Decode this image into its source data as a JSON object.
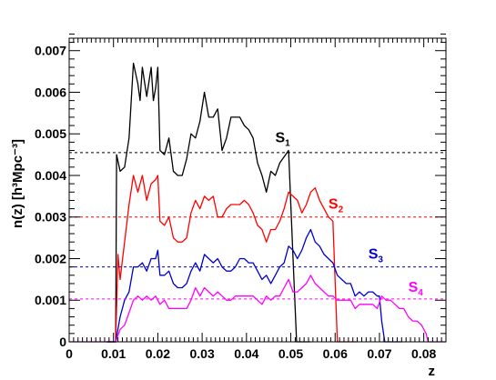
{
  "chart_data": {
    "type": "line",
    "xlabel": "z",
    "ylabel": "n(z) [h³Mpc⁻³]",
    "xlim": [
      0,
      0.085
    ],
    "ylim": [
      0,
      0.0073
    ],
    "grid": false,
    "x_ticks": [
      "0",
      "0.01",
      "0.02",
      "0.03",
      "0.04",
      "0.05",
      "0.06",
      "0.07",
      "0.08"
    ],
    "y_ticks": [
      "0",
      "0.001",
      "0.002",
      "0.003",
      "0.004",
      "0.005",
      "0.006",
      "0.007"
    ],
    "series": [
      {
        "name": "S1",
        "label_main": "S",
        "label_sub": "1",
        "label_pos": [
          0.0465,
          0.0048
        ],
        "color": "#000000",
        "mean": 0.00455,
        "points": [
          [
            0.0085,
            0
          ],
          [
            0.0095,
            0
          ],
          [
            0.0105,
            0
          ],
          [
            0.0107,
            0.0045
          ],
          [
            0.0115,
            0.0041
          ],
          [
            0.0125,
            0.0042
          ],
          [
            0.0135,
            0.0049
          ],
          [
            0.0145,
            0.0067
          ],
          [
            0.0155,
            0.0062
          ],
          [
            0.016,
            0.0058
          ],
          [
            0.0165,
            0.0066
          ],
          [
            0.0175,
            0.0059
          ],
          [
            0.0185,
            0.0066
          ],
          [
            0.019,
            0.0058
          ],
          [
            0.0195,
            0.0061
          ],
          [
            0.02,
            0.0066
          ],
          [
            0.0205,
            0.0046
          ],
          [
            0.0215,
            0.0045
          ],
          [
            0.0225,
            0.0049
          ],
          [
            0.0235,
            0.0041
          ],
          [
            0.0245,
            0.004
          ],
          [
            0.0255,
            0.004
          ],
          [
            0.0265,
            0.0044
          ],
          [
            0.0275,
            0.005
          ],
          [
            0.0285,
            0.0049
          ],
          [
            0.0295,
            0.0053
          ],
          [
            0.0305,
            0.006
          ],
          [
            0.0315,
            0.0054
          ],
          [
            0.0325,
            0.0054
          ],
          [
            0.0335,
            0.0056
          ],
          [
            0.0345,
            0.0046
          ],
          [
            0.0355,
            0.0049
          ],
          [
            0.0365,
            0.0054
          ],
          [
            0.0375,
            0.0054
          ],
          [
            0.0385,
            0.0054
          ],
          [
            0.0395,
            0.0052
          ],
          [
            0.0405,
            0.0051
          ],
          [
            0.0415,
            0.0049
          ],
          [
            0.0425,
            0.0043
          ],
          [
            0.0435,
            0.004
          ],
          [
            0.0445,
            0.0036
          ],
          [
            0.0455,
            0.0041
          ],
          [
            0.0465,
            0.004
          ],
          [
            0.0475,
            0.0043
          ],
          [
            0.0495,
            0.0046
          ],
          [
            0.0505,
            0.002
          ],
          [
            0.0513,
            0
          ],
          [
            0.0545,
            0
          ]
        ]
      },
      {
        "name": "S2",
        "label_main": "S",
        "label_sub": "2",
        "label_pos": [
          0.0585,
          0.0032
        ],
        "color": "#ff0000",
        "mean": 0.003,
        "points": [
          [
            0.0085,
            0
          ],
          [
            0.0105,
            0
          ],
          [
            0.011,
            0.0021
          ],
          [
            0.0115,
            0.0015
          ],
          [
            0.0125,
            0.0024
          ],
          [
            0.0135,
            0.0033
          ],
          [
            0.0145,
            0.004
          ],
          [
            0.0155,
            0.0036
          ],
          [
            0.0165,
            0.004
          ],
          [
            0.0175,
            0.0034
          ],
          [
            0.0185,
            0.0038
          ],
          [
            0.0195,
            0.0039
          ],
          [
            0.02,
            0.004
          ],
          [
            0.0205,
            0.0029
          ],
          [
            0.0215,
            0.0028
          ],
          [
            0.0225,
            0.003
          ],
          [
            0.0235,
            0.0025
          ],
          [
            0.0245,
            0.0024
          ],
          [
            0.0255,
            0.0024
          ],
          [
            0.0265,
            0.0025
          ],
          [
            0.0275,
            0.0031
          ],
          [
            0.0285,
            0.0034
          ],
          [
            0.0295,
            0.0032
          ],
          [
            0.0305,
            0.0035
          ],
          [
            0.0315,
            0.0034
          ],
          [
            0.0325,
            0.0035
          ],
          [
            0.0335,
            0.003
          ],
          [
            0.0345,
            0.003
          ],
          [
            0.0355,
            0.0032
          ],
          [
            0.0365,
            0.0033
          ],
          [
            0.0375,
            0.0033
          ],
          [
            0.0385,
            0.0033
          ],
          [
            0.0395,
            0.0034
          ],
          [
            0.0405,
            0.0033
          ],
          [
            0.0415,
            0.0031
          ],
          [
            0.0425,
            0.0028
          ],
          [
            0.0435,
            0.0027
          ],
          [
            0.0445,
            0.0024
          ],
          [
            0.0455,
            0.0027
          ],
          [
            0.0465,
            0.0027
          ],
          [
            0.0475,
            0.0029
          ],
          [
            0.0485,
            0.0032
          ],
          [
            0.0495,
            0.0036
          ],
          [
            0.0505,
            0.0035
          ],
          [
            0.0515,
            0.0034
          ],
          [
            0.0525,
            0.0031
          ],
          [
            0.0535,
            0.0033
          ],
          [
            0.0545,
            0.0036
          ],
          [
            0.0555,
            0.0037
          ],
          [
            0.0565,
            0.0034
          ],
          [
            0.0575,
            0.0032
          ],
          [
            0.0585,
            0.003
          ],
          [
            0.0595,
            0.0029
          ],
          [
            0.0605,
            0
          ],
          [
            0.065,
            0
          ]
        ]
      },
      {
        "name": "S3",
        "label_main": "S",
        "label_sub": "3",
        "label_pos": [
          0.0675,
          0.002
        ],
        "color": "#0000cc",
        "mean": 0.0018,
        "points": [
          [
            0.0085,
            0
          ],
          [
            0.0105,
            0
          ],
          [
            0.0115,
            0.0006
          ],
          [
            0.0125,
            0.001
          ],
          [
            0.0135,
            0.0012
          ],
          [
            0.0145,
            0.0018
          ],
          [
            0.0155,
            0.0018
          ],
          [
            0.0165,
            0.0019
          ],
          [
            0.0175,
            0.0017
          ],
          [
            0.0185,
            0.002
          ],
          [
            0.0195,
            0.002
          ],
          [
            0.02,
            0.0022
          ],
          [
            0.0205,
            0.0016
          ],
          [
            0.0215,
            0.0016
          ],
          [
            0.0225,
            0.0017
          ],
          [
            0.0235,
            0.0014
          ],
          [
            0.0245,
            0.0013
          ],
          [
            0.0255,
            0.0013
          ],
          [
            0.0265,
            0.0014
          ],
          [
            0.0275,
            0.0017
          ],
          [
            0.0285,
            0.0019
          ],
          [
            0.0295,
            0.0017
          ],
          [
            0.0305,
            0.0021
          ],
          [
            0.0315,
            0.002
          ],
          [
            0.0325,
            0.0019
          ],
          [
            0.0335,
            0.002
          ],
          [
            0.0345,
            0.0018
          ],
          [
            0.0355,
            0.0017
          ],
          [
            0.0365,
            0.0017
          ],
          [
            0.0375,
            0.0018
          ],
          [
            0.0385,
            0.002
          ],
          [
            0.0395,
            0.002
          ],
          [
            0.0405,
            0.0019
          ],
          [
            0.0415,
            0.0019
          ],
          [
            0.0425,
            0.0017
          ],
          [
            0.0435,
            0.0015
          ],
          [
            0.0445,
            0.0016
          ],
          [
            0.0455,
            0.0014
          ],
          [
            0.0465,
            0.0016
          ],
          [
            0.0475,
            0.0018
          ],
          [
            0.0485,
            0.0019
          ],
          [
            0.0495,
            0.0023
          ],
          [
            0.0505,
            0.0022
          ],
          [
            0.0515,
            0.002
          ],
          [
            0.0525,
            0.0022
          ],
          [
            0.0535,
            0.0025
          ],
          [
            0.0545,
            0.0027
          ],
          [
            0.0555,
            0.0024
          ],
          [
            0.0565,
            0.0023
          ],
          [
            0.0575,
            0.0021
          ],
          [
            0.0585,
            0.002
          ],
          [
            0.0595,
            0.0019
          ],
          [
            0.0605,
            0.0016
          ],
          [
            0.0615,
            0.0015
          ],
          [
            0.0625,
            0.0014
          ],
          [
            0.0635,
            0.0014
          ],
          [
            0.0645,
            0.0011
          ],
          [
            0.0655,
            0.0012
          ],
          [
            0.0665,
            0.0011
          ],
          [
            0.0675,
            0.0012
          ],
          [
            0.0685,
            0.0012
          ],
          [
            0.0695,
            0.0011
          ],
          [
            0.07,
            0.0011
          ],
          [
            0.0705,
            0.0005
          ],
          [
            0.0712,
            0
          ],
          [
            0.075,
            0
          ]
        ]
      },
      {
        "name": "S4",
        "label_main": "S",
        "label_sub": "4",
        "label_pos": [
          0.0765,
          0.0012
        ],
        "color": "#ff00ff",
        "mean": 0.00103,
        "points": [
          [
            0,
            0
          ],
          [
            0.0095,
            0
          ],
          [
            0.0105,
            0
          ],
          [
            0.0115,
            0.0003
          ],
          [
            0.0125,
            0.0004
          ],
          [
            0.0135,
            0.0007
          ],
          [
            0.0145,
            0.001
          ],
          [
            0.0155,
            0.0011
          ],
          [
            0.0165,
            0.001
          ],
          [
            0.0175,
            0.0011
          ],
          [
            0.0185,
            0.001
          ],
          [
            0.0195,
            0.0011
          ],
          [
            0.0205,
            0.0009
          ],
          [
            0.0215,
            0.001
          ],
          [
            0.0225,
            0.0008
          ],
          [
            0.0235,
            0.0008
          ],
          [
            0.0245,
            0.0008
          ],
          [
            0.0255,
            0.0008
          ],
          [
            0.0265,
            0.0008
          ],
          [
            0.0275,
            0.001
          ],
          [
            0.0285,
            0.0013
          ],
          [
            0.0295,
            0.0011
          ],
          [
            0.0305,
            0.0013
          ],
          [
            0.0315,
            0.0012
          ],
          [
            0.0325,
            0.0011
          ],
          [
            0.0335,
            0.0012
          ],
          [
            0.0345,
            0.0011
          ],
          [
            0.0355,
            0.001
          ],
          [
            0.0365,
            0.001
          ],
          [
            0.0375,
            0.0011
          ],
          [
            0.0385,
            0.0011
          ],
          [
            0.0395,
            0.0011
          ],
          [
            0.0405,
            0.0011
          ],
          [
            0.0415,
            0.0011
          ],
          [
            0.0425,
            0.001
          ],
          [
            0.0435,
            0.0009
          ],
          [
            0.0445,
            0.0011
          ],
          [
            0.0455,
            0.001
          ],
          [
            0.0465,
            0.0011
          ],
          [
            0.0475,
            0.0011
          ],
          [
            0.0485,
            0.0013
          ],
          [
            0.0495,
            0.0015
          ],
          [
            0.0505,
            0.0012
          ],
          [
            0.0515,
            0.0012
          ],
          [
            0.0525,
            0.0013
          ],
          [
            0.0535,
            0.0014
          ],
          [
            0.0545,
            0.0016
          ],
          [
            0.0555,
            0.0014
          ],
          [
            0.0565,
            0.0013
          ],
          [
            0.0575,
            0.0012
          ],
          [
            0.0585,
            0.0011
          ],
          [
            0.0595,
            0.0011
          ],
          [
            0.0605,
            0.001
          ],
          [
            0.0615,
            0.001
          ],
          [
            0.0625,
            0.001
          ],
          [
            0.0635,
            0.001
          ],
          [
            0.0645,
            0.0008
          ],
          [
            0.0655,
            0.0009
          ],
          [
            0.0665,
            0.0009
          ],
          [
            0.0675,
            0.0009
          ],
          [
            0.0685,
            0.0009
          ],
          [
            0.0695,
            0.0008
          ],
          [
            0.0705,
            0.0011
          ],
          [
            0.0715,
            0.001
          ],
          [
            0.0725,
            0.001
          ],
          [
            0.0735,
            0.0009
          ],
          [
            0.0745,
            0.0008
          ],
          [
            0.0755,
            0.0008
          ],
          [
            0.0765,
            0.0006
          ],
          [
            0.0775,
            0.0005
          ],
          [
            0.0785,
            0.0005
          ],
          [
            0.0795,
            0.0004
          ],
          [
            0.0805,
            0.0002
          ],
          [
            0.081,
            0
          ],
          [
            0.085,
            0
          ]
        ]
      }
    ]
  }
}
